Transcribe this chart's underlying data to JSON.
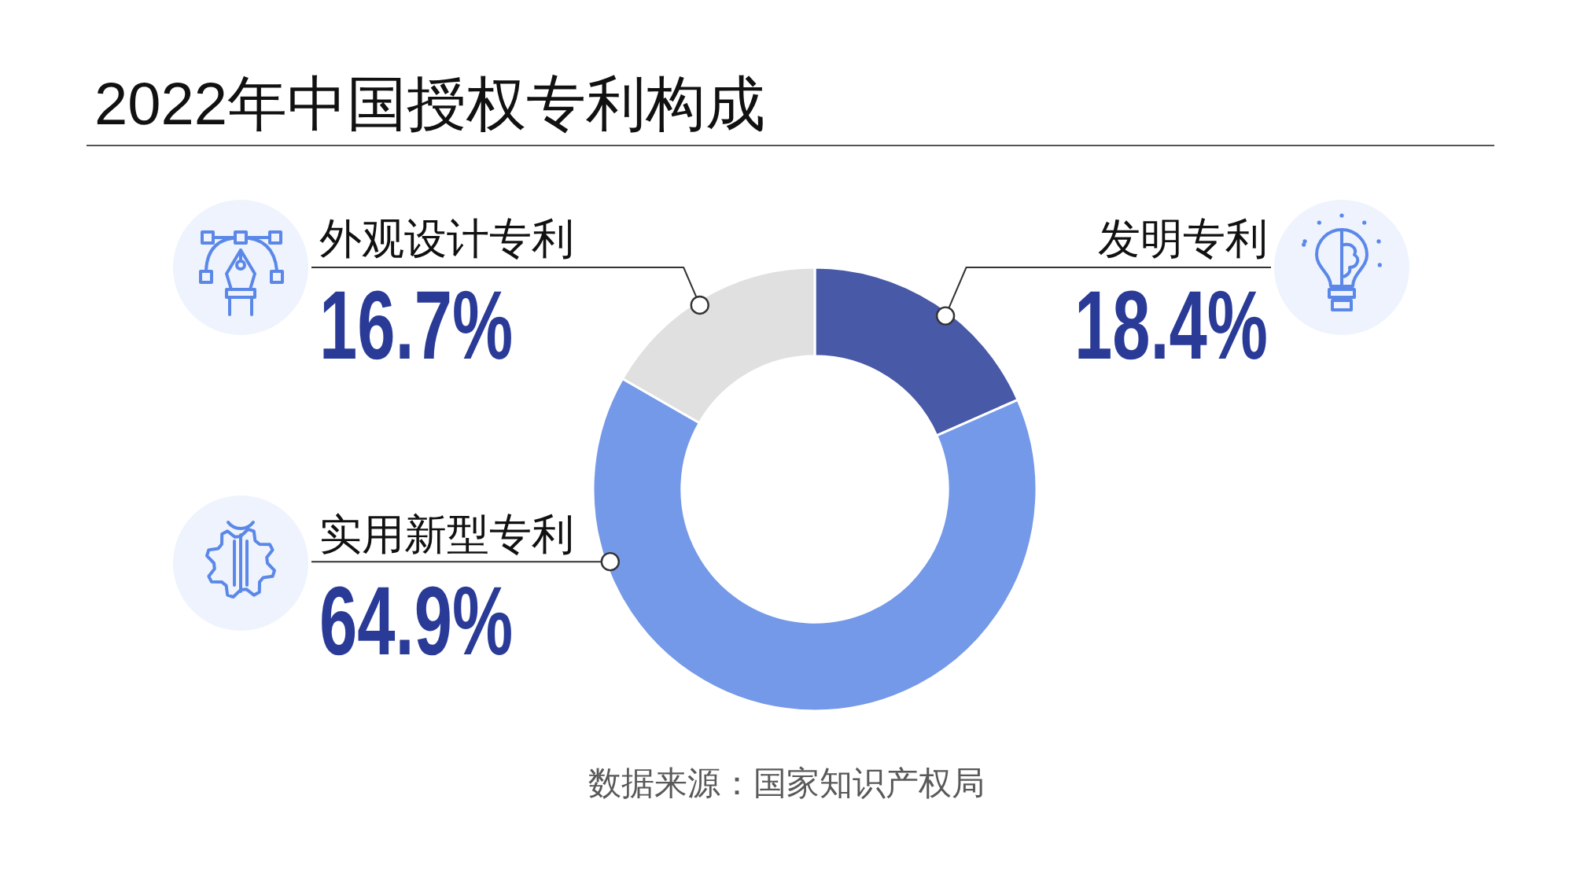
{
  "chart_data": {
    "type": "donut",
    "title": "2022年中国授权专利构成",
    "categories": [
      "发明专利",
      "实用新型专利",
      "外观设计专利"
    ],
    "values": [
      18.4,
      64.9,
      16.7
    ],
    "value_labels": [
      "18.4%",
      "64.9%",
      "16.7%"
    ],
    "colors": [
      "#4759a7",
      "#7499e8",
      "#e0e0e0"
    ],
    "annotations": [
      "数据来源：国家知识产权局"
    ]
  }
}
